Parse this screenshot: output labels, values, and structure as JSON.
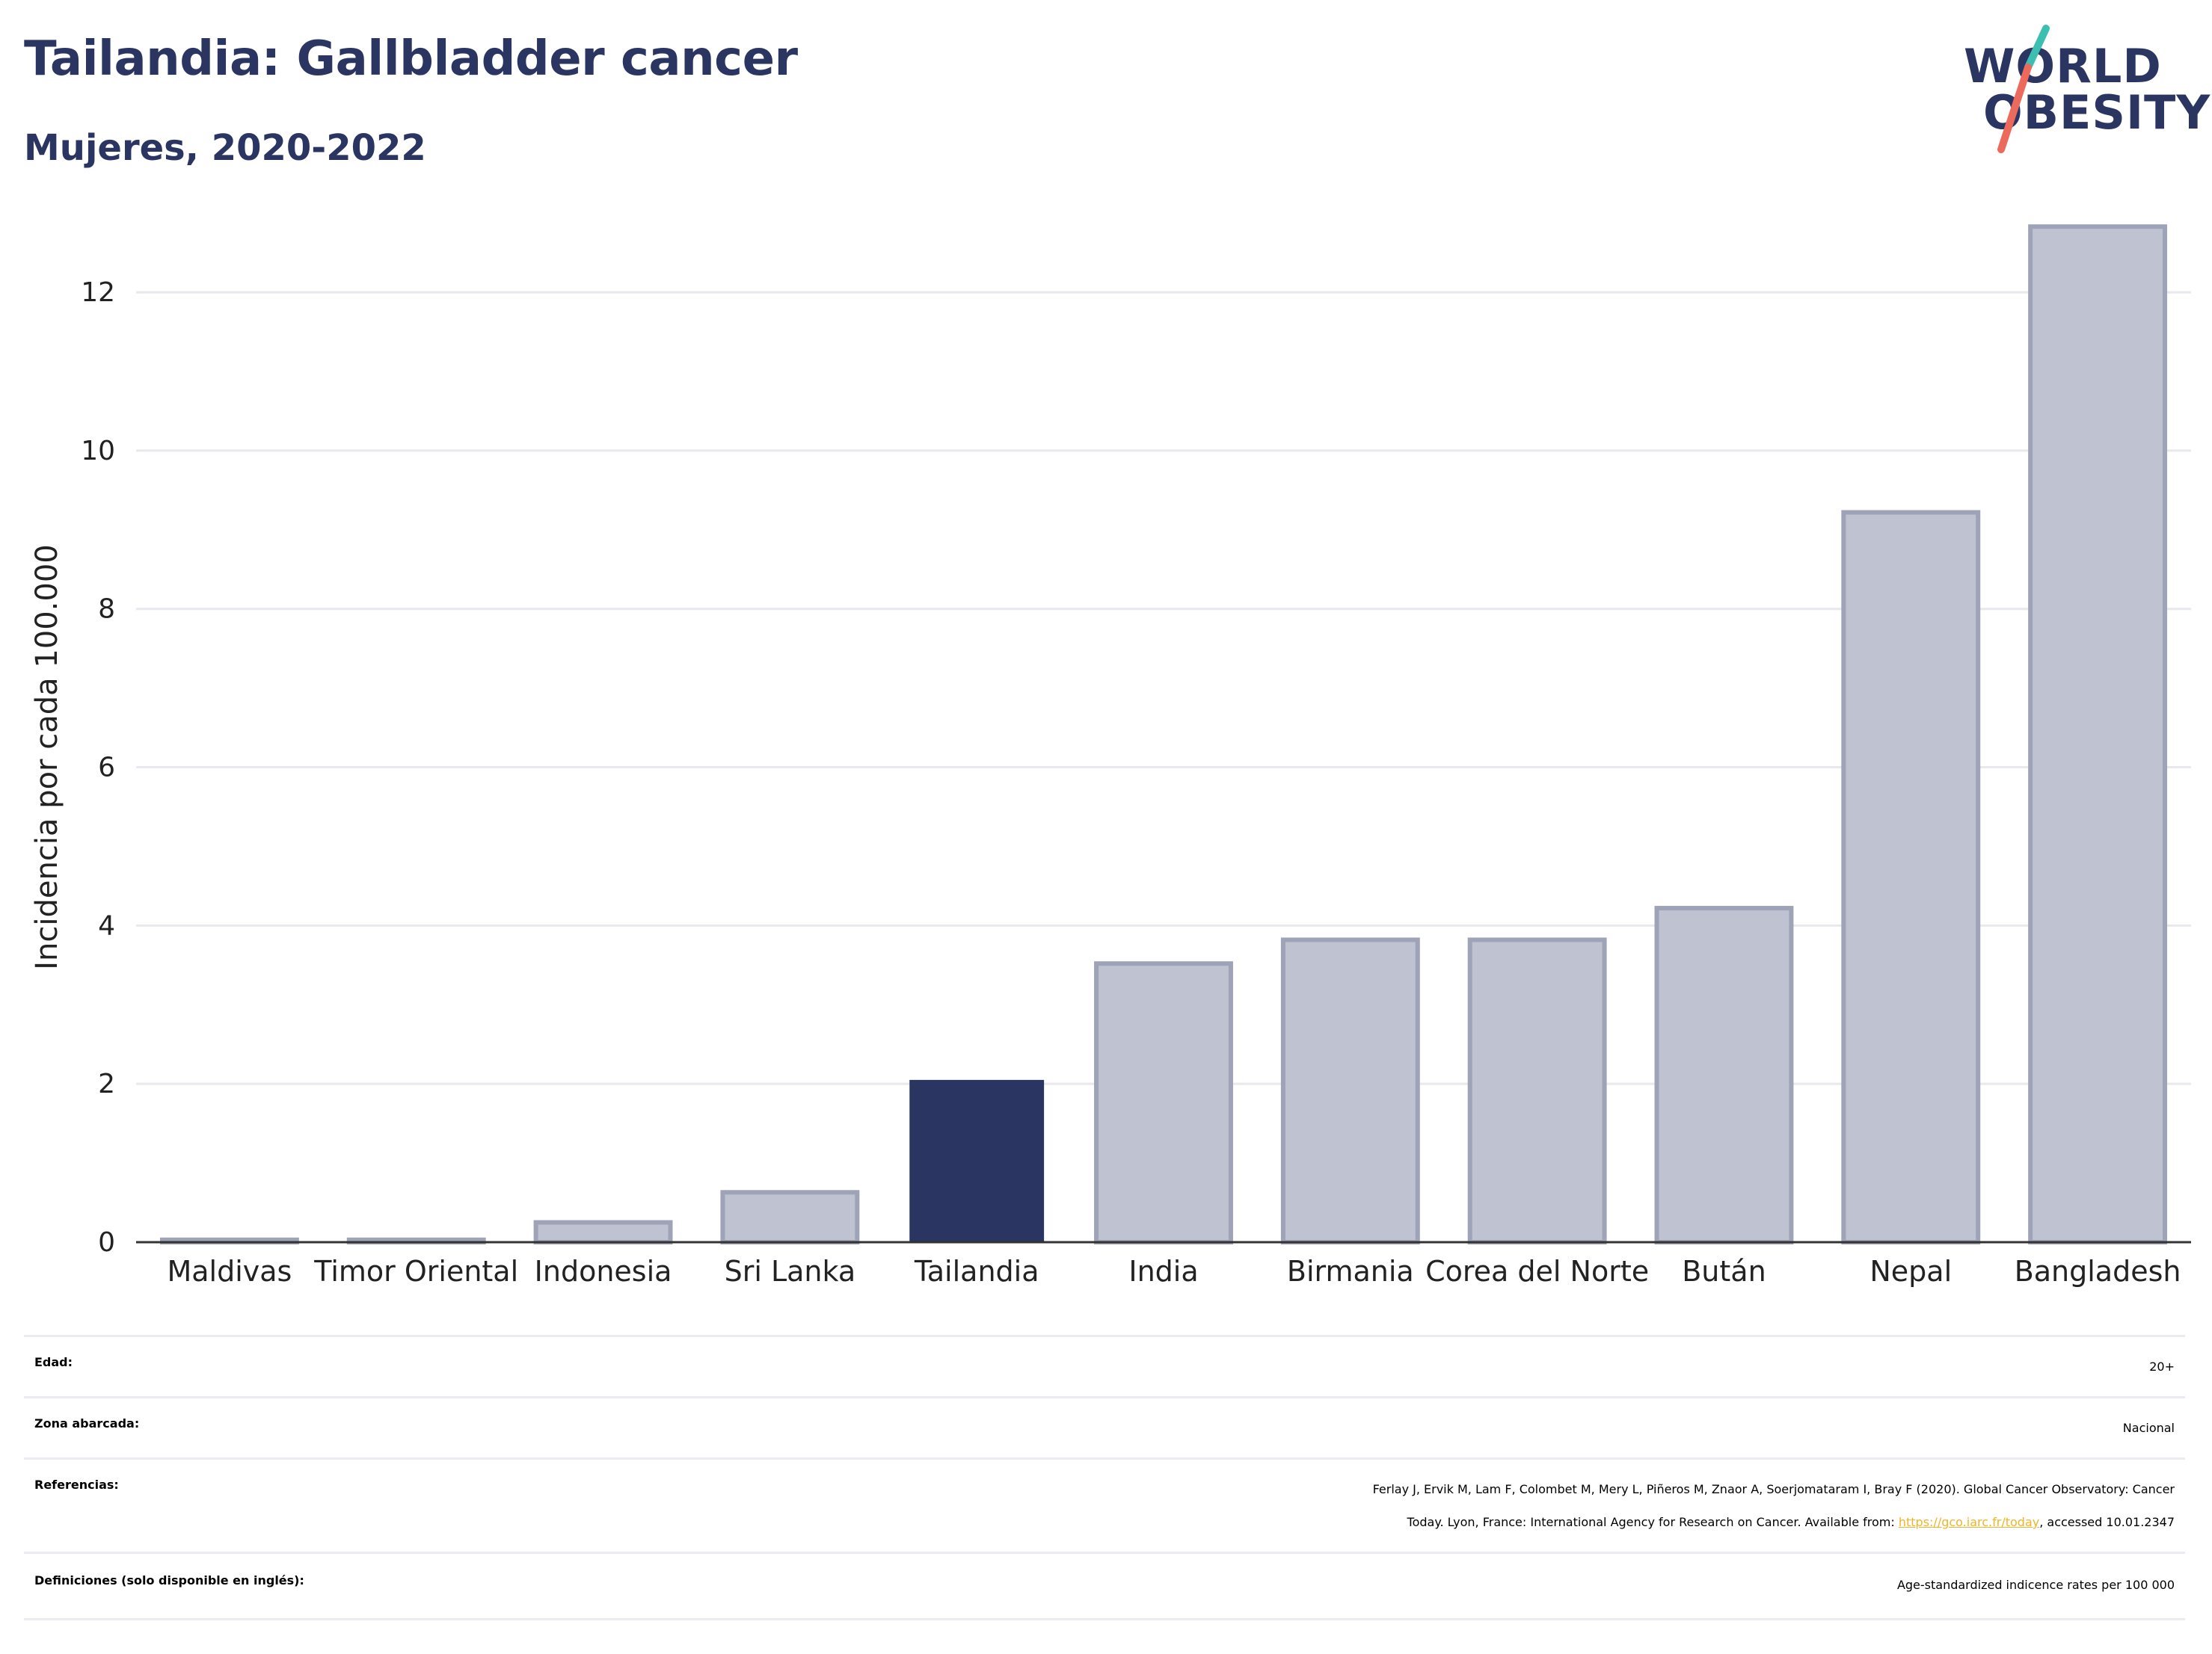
{
  "header": {
    "title": "Tailandia: Gallbladder cancer",
    "subtitle": "Mujeres, 2020-2022",
    "logo_line1": "WORLD",
    "logo_line2": "OBESITY"
  },
  "colors": {
    "highlight": "#2b3562",
    "bar": "#bfc2d0",
    "bar_border": "#9ea3b8",
    "grid": "#e8e8ee",
    "logo_teal": "#3bbfb1",
    "logo_coral": "#ec6a5c",
    "link": "#f0b429"
  },
  "chart_data": {
    "type": "bar",
    "ylabel": "Incidencia por cada 100.000",
    "ylim": [
      0,
      13.2
    ],
    "yticks": [
      0,
      2,
      4,
      6,
      8,
      10,
      12
    ],
    "grid": true,
    "categories": [
      "Maldivas",
      "Timor Oriental",
      "Indonesia",
      "Sri Lanka",
      "Tailandia",
      "India",
      "Birmania",
      "Corea del Norte",
      "Bután",
      "Nepal",
      "Bangladesh"
    ],
    "values": [
      0.03,
      0.03,
      0.25,
      0.63,
      2.05,
      3.52,
      3.82,
      3.82,
      4.22,
      9.22,
      12.83
    ],
    "highlight": "Tailandia"
  },
  "meta": {
    "edad_label": "Edad:",
    "edad_value": "20+",
    "zona_label": "Zona abarcada:",
    "zona_value": "Nacional",
    "ref_label": "Referencias:",
    "ref_line1": "Ferlay J, Ervik M, Lam F, Colombet M, Mery L, Piñeros M, Znaor A, Soerjomataram I, Bray F (2020). Global Cancer Observatory: Cancer",
    "ref_line2_pre": "Today. Lyon, France: International Agency for Research on Cancer. Available from: ",
    "ref_link": "https://gco.iarc.fr/today",
    "ref_line2_post": ", accessed 10.01.2347",
    "def_label": "Definiciones (solo disponible en inglés):",
    "def_value": "Age-standardized indicence rates per 100 000"
  }
}
